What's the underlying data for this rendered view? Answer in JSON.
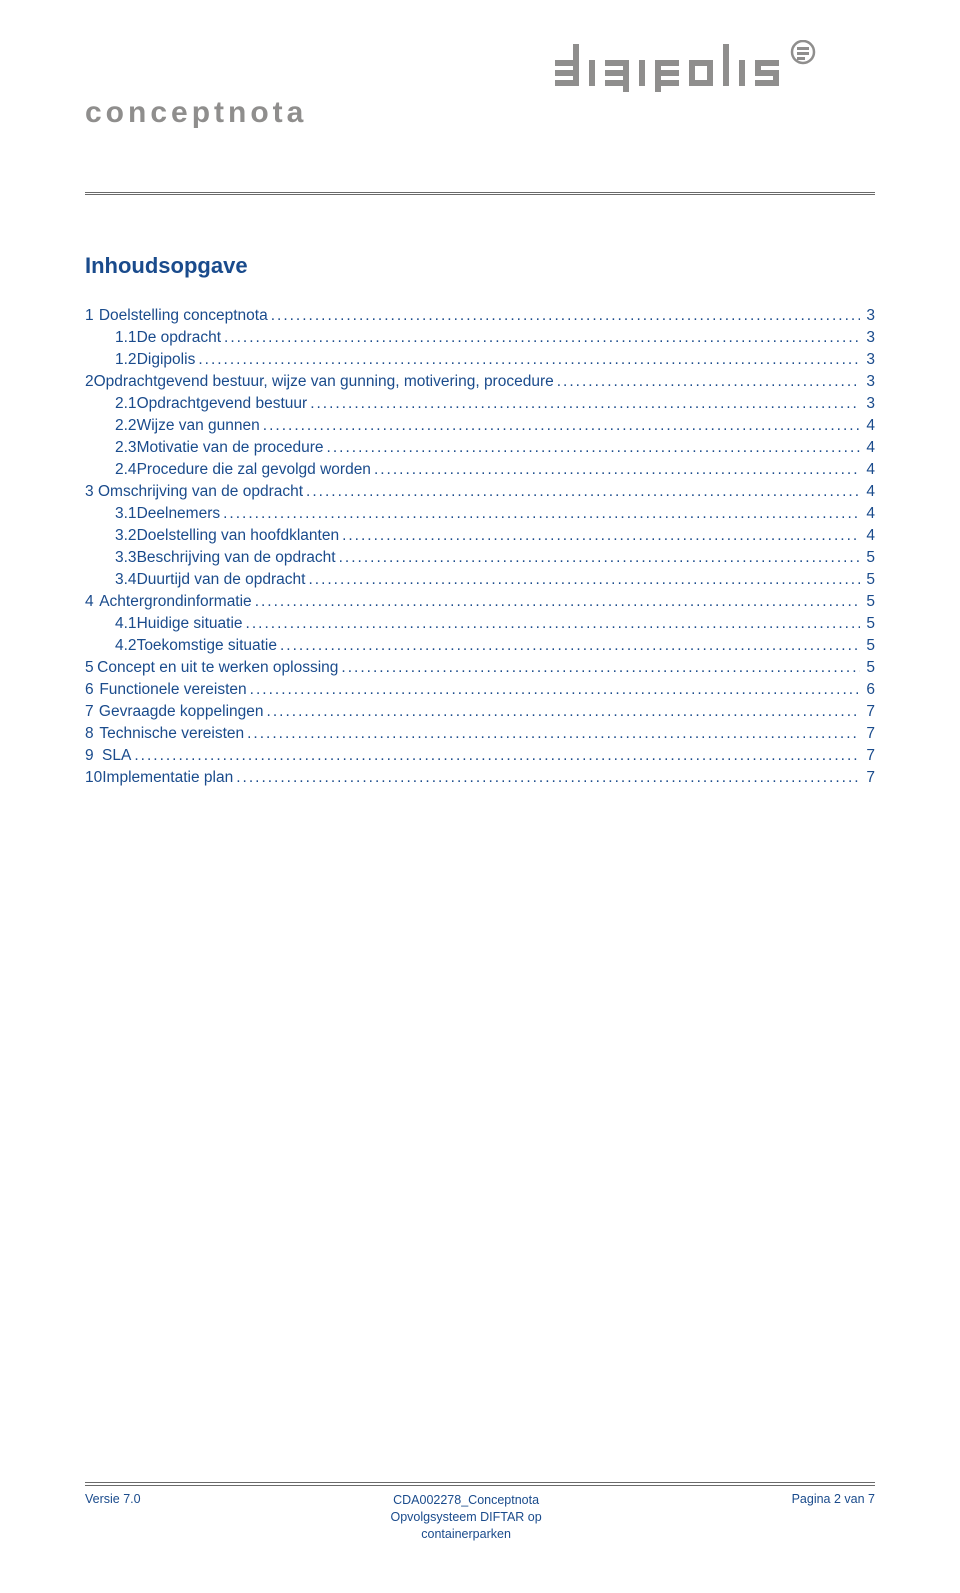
{
  "doc_type_label": "conceptnota",
  "logo": {
    "fill": "#8f8e8d",
    "word": [
      {
        "type": "bars",
        "bars": [
          6,
          14,
          22
        ]
      },
      {
        "type": "vbar"
      },
      {
        "type": "bars",
        "bars": [
          6,
          14,
          22
        ],
        "flip": true
      },
      {
        "type": "vbar"
      },
      {
        "type": "bars",
        "bars": [
          6,
          14,
          22
        ]
      },
      {
        "type": "bars-down",
        "bars": [
          6,
          14,
          22
        ]
      },
      {
        "type": "vbar"
      },
      {
        "type": "vbar"
      },
      {
        "type": "bars",
        "bars": [
          6,
          14,
          22
        ],
        "flip": true,
        "upperdot": true
      },
      {
        "type": "circle-e"
      }
    ]
  },
  "toc_title": "Inhoudsopgave",
  "colors": {
    "link": "#1a4b8c",
    "muted": "#8f8e8d",
    "rule": "#6a6a6a",
    "bg": "#ffffff"
  },
  "toc": [
    {
      "level": 1,
      "num": "1",
      "label": "Doelstelling conceptnota",
      "page": "3"
    },
    {
      "level": 2,
      "num": "1.1",
      "label": "De opdracht",
      "page": "3"
    },
    {
      "level": 2,
      "num": "1.2",
      "label": "Digipolis",
      "page": "3"
    },
    {
      "level": 1,
      "num": "2",
      "label": "Opdrachtgevend bestuur, wijze van gunning, motivering, procedure",
      "page": "3"
    },
    {
      "level": 2,
      "num": "2.1",
      "label": "Opdrachtgevend bestuur",
      "page": "3"
    },
    {
      "level": 2,
      "num": "2.2",
      "label": "Wijze van gunnen",
      "page": "4"
    },
    {
      "level": 2,
      "num": "2.3",
      "label": "Motivatie van de procedure",
      "page": "4"
    },
    {
      "level": 2,
      "num": "2.4",
      "label": "Procedure die zal gevolgd worden",
      "page": "4"
    },
    {
      "level": 1,
      "num": "3",
      "label": "Omschrijving van de opdracht",
      "page": "4"
    },
    {
      "level": 2,
      "num": "3.1",
      "label": "Deelnemers",
      "page": "4"
    },
    {
      "level": 2,
      "num": "3.2",
      "label": "Doelstelling van hoofdklanten",
      "page": "4"
    },
    {
      "level": 2,
      "num": "3.3",
      "label": "Beschrijving van de opdracht",
      "page": "5"
    },
    {
      "level": 2,
      "num": "3.4",
      "label": "Duurtijd van de opdracht",
      "page": "5"
    },
    {
      "level": 1,
      "num": "4",
      "label": "Achtergrondinformatie",
      "page": "5"
    },
    {
      "level": 2,
      "num": "4.1",
      "label": "Huidige situatie",
      "page": "5"
    },
    {
      "level": 2,
      "num": "4.2",
      "label": "Toekomstige situatie",
      "page": "5"
    },
    {
      "level": 1,
      "num": "5",
      "label": "Concept en uit te werken oplossing",
      "page": "5"
    },
    {
      "level": 1,
      "num": "6",
      "label": "Functionele vereisten",
      "page": "6"
    },
    {
      "level": 1,
      "num": "7",
      "label": "Gevraagde koppelingen",
      "page": "7"
    },
    {
      "level": 1,
      "num": "8",
      "label": "Technische vereisten",
      "page": "7"
    },
    {
      "level": 1,
      "num": "9",
      "label": "SLA",
      "page": "7"
    },
    {
      "level": 1,
      "num": "10",
      "label": "Implementatie plan",
      "page": "7"
    }
  ],
  "footer": {
    "left": "Versie 7.0",
    "center_line1": "CDA002278_Conceptnota",
    "center_line2": "Opvolgsysteem DIFTAR op",
    "center_line3": "containerparken",
    "right": "Pagina 2 van 7"
  }
}
